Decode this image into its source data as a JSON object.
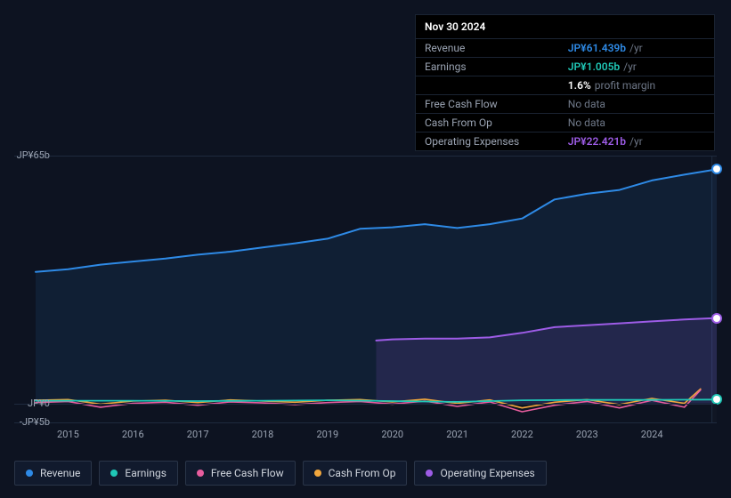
{
  "colors": {
    "revenue": "#2e8ae6",
    "earnings": "#1fc7b6",
    "fcf": "#e85d9e",
    "cfo": "#f2a73d",
    "opex": "#9d5ce6",
    "bg": "#0d1321",
    "grid": "#1e2a3e",
    "axis": "#9aa3b2",
    "tooltip_bg": "#000000"
  },
  "tooltip": {
    "date": "Nov 30 2024",
    "rows": [
      {
        "label": "Revenue",
        "value": "JP¥61.439b",
        "color": "#2e8ae6",
        "suffix": "/yr"
      },
      {
        "label": "Earnings",
        "value": "JP¥1.005b",
        "color": "#1fc7b6",
        "suffix": "/yr"
      },
      {
        "label": "",
        "value": "1.6%",
        "color": "#ffffff",
        "suffix": "profit margin"
      },
      {
        "label": "Free Cash Flow",
        "value": "No data",
        "nodata": true
      },
      {
        "label": "Cash From Op",
        "value": "No data",
        "nodata": true
      },
      {
        "label": "Operating Expenses",
        "value": "JP¥22.421b",
        "color": "#9d5ce6",
        "suffix": "/yr"
      }
    ]
  },
  "chart": {
    "ylim": [
      -5,
      65
    ],
    "ylabels": [
      {
        "v": 65,
        "t": "JP¥65b"
      },
      {
        "v": 0,
        "t": "JP¥0"
      },
      {
        "v": -5,
        "t": "-JP¥5b"
      }
    ],
    "xlim": [
      2014.5,
      2025.0
    ],
    "xticks": [
      2015,
      2016,
      2017,
      2018,
      2019,
      2020,
      2021,
      2022,
      2023,
      2024
    ],
    "future_start": 2024.92,
    "series": {
      "revenue": {
        "color": "#2e8ae6",
        "fill_opacity": 0.1,
        "width": 2,
        "pts": [
          [
            2014.5,
            34.5
          ],
          [
            2015,
            35.2
          ],
          [
            2015.5,
            36.4
          ],
          [
            2016,
            37.2
          ],
          [
            2016.5,
            38.0
          ],
          [
            2017,
            39.0
          ],
          [
            2017.5,
            39.8
          ],
          [
            2018,
            40.9
          ],
          [
            2018.5,
            42.0
          ],
          [
            2019,
            43.2
          ],
          [
            2019.5,
            45.8
          ],
          [
            2020,
            46.2
          ],
          [
            2020.5,
            47.0
          ],
          [
            2021,
            46.0
          ],
          [
            2021.5,
            47.0
          ],
          [
            2022,
            48.5
          ],
          [
            2022.5,
            53.5
          ],
          [
            2023,
            55.0
          ],
          [
            2023.5,
            56.0
          ],
          [
            2024,
            58.5
          ],
          [
            2024.5,
            60.0
          ],
          [
            2025.0,
            61.4
          ]
        ]
      },
      "opex": {
        "color": "#9d5ce6",
        "fill_opacity": 0.14,
        "width": 2,
        "start": 2019.75,
        "pts": [
          [
            2019.75,
            16.5
          ],
          [
            2020,
            16.8
          ],
          [
            2020.5,
            17.0
          ],
          [
            2021,
            17.0
          ],
          [
            2021.5,
            17.3
          ],
          [
            2022,
            18.5
          ],
          [
            2022.5,
            20.0
          ],
          [
            2023,
            20.5
          ],
          [
            2023.5,
            21.0
          ],
          [
            2024,
            21.5
          ],
          [
            2024.5,
            22.0
          ],
          [
            2025.0,
            22.4
          ]
        ]
      },
      "fcf": {
        "color": "#e85d9e",
        "width": 1.6,
        "pts": [
          [
            2014.5,
            0.2
          ],
          [
            2015,
            0.5
          ],
          [
            2015.5,
            -1.0
          ],
          [
            2016,
            0.0
          ],
          [
            2016.5,
            0.3
          ],
          [
            2017,
            -0.5
          ],
          [
            2017.5,
            0.4
          ],
          [
            2018,
            0.1
          ],
          [
            2018.5,
            -0.3
          ],
          [
            2019,
            0.2
          ],
          [
            2019.5,
            0.5
          ],
          [
            2020,
            -0.2
          ],
          [
            2020.5,
            0.6
          ],
          [
            2021,
            -0.8
          ],
          [
            2021.5,
            0.4
          ],
          [
            2022,
            -2.2
          ],
          [
            2022.5,
            -0.5
          ],
          [
            2023,
            0.5
          ],
          [
            2023.5,
            -1.2
          ],
          [
            2024,
            0.8
          ],
          [
            2024.5,
            -1.0
          ],
          [
            2024.75,
            3.5
          ]
        ]
      },
      "cfo": {
        "color": "#f2a73d",
        "width": 1.6,
        "pts": [
          [
            2014.5,
            0.8
          ],
          [
            2015,
            1.0
          ],
          [
            2015.5,
            -0.2
          ],
          [
            2016,
            0.6
          ],
          [
            2016.5,
            0.8
          ],
          [
            2017,
            0.2
          ],
          [
            2017.5,
            0.9
          ],
          [
            2018,
            0.6
          ],
          [
            2018.5,
            0.3
          ],
          [
            2019,
            0.8
          ],
          [
            2019.5,
            1.0
          ],
          [
            2020,
            0.4
          ],
          [
            2020.5,
            1.1
          ],
          [
            2021,
            0.0
          ],
          [
            2021.5,
            0.9
          ],
          [
            2022,
            -1.2
          ],
          [
            2022.5,
            0.3
          ],
          [
            2023,
            1.0
          ],
          [
            2023.5,
            -0.3
          ],
          [
            2024,
            1.3
          ],
          [
            2024.5,
            0.0
          ],
          [
            2024.75,
            3.8
          ]
        ]
      },
      "earnings": {
        "color": "#1fc7b6",
        "width": 1.8,
        "pts": [
          [
            2014.5,
            0.7
          ],
          [
            2015,
            0.7
          ],
          [
            2016,
            0.7
          ],
          [
            2017,
            0.6
          ],
          [
            2018,
            0.7
          ],
          [
            2019,
            0.8
          ],
          [
            2020,
            0.6
          ],
          [
            2021,
            0.4
          ],
          [
            2022,
            0.8
          ],
          [
            2023,
            0.9
          ],
          [
            2024,
            0.9
          ],
          [
            2025.0,
            1.0
          ]
        ]
      }
    },
    "markers": [
      {
        "x": 2025.0,
        "y": 61.4,
        "ring": "#2e8ae6"
      },
      {
        "x": 2025.0,
        "y": 22.4,
        "ring": "#9d5ce6"
      },
      {
        "x": 2025.0,
        "y": 1.0,
        "ring": "#1fc7b6"
      }
    ]
  },
  "legend": [
    {
      "label": "Revenue",
      "color": "#2e8ae6",
      "key": "revenue"
    },
    {
      "label": "Earnings",
      "color": "#1fc7b6",
      "key": "earnings"
    },
    {
      "label": "Free Cash Flow",
      "color": "#e85d9e",
      "key": "fcf"
    },
    {
      "label": "Cash From Op",
      "color": "#f2a73d",
      "key": "cfo"
    },
    {
      "label": "Operating Expenses",
      "color": "#9d5ce6",
      "key": "opex"
    }
  ]
}
